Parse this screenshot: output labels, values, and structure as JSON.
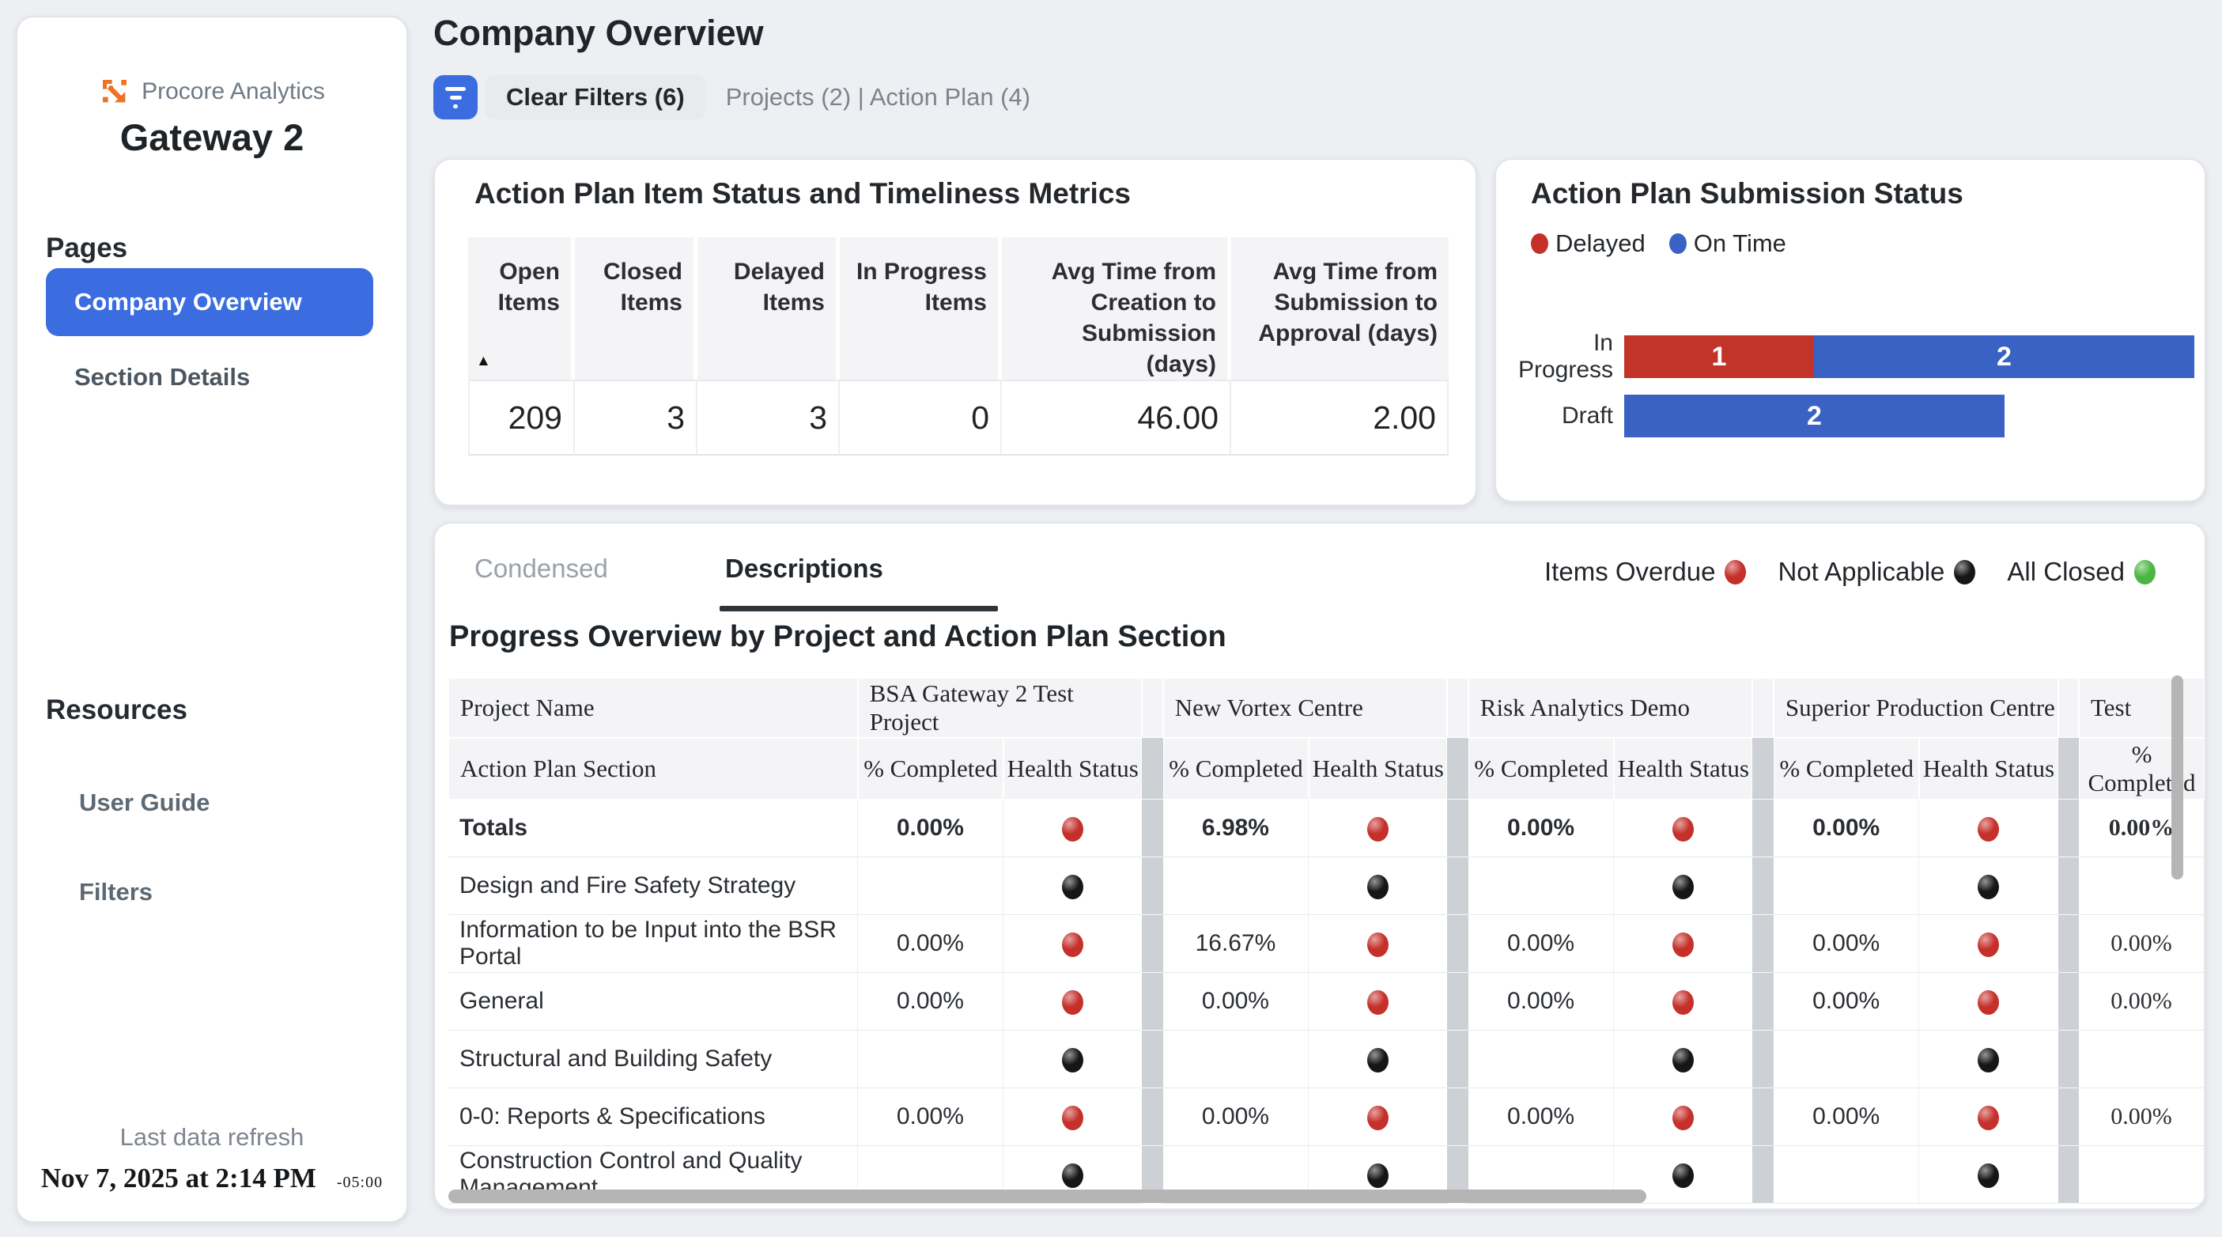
{
  "colors": {
    "page_bg": "#edeff3",
    "accent_blue": "#3b6de0",
    "bar_blue": "#3a62c4",
    "bar_red": "#c23428",
    "dot_red": "#c5302a",
    "dot_black": "#161616",
    "dot_green": "#4db643",
    "header_gray": "#f4f4f6",
    "separator_gray": "#cdd0d4",
    "scrollbar_gray": "#b5b5b5"
  },
  "sidebar": {
    "logo_text": "Procore Analytics",
    "title": "Gateway 2",
    "pages_heading": "Pages",
    "pages": [
      {
        "label": "Company Overview",
        "active": true
      },
      {
        "label": "Section Details",
        "active": false
      }
    ],
    "resources_heading": "Resources",
    "resources": [
      {
        "label": "User Guide"
      },
      {
        "label": "Filters"
      }
    ],
    "last_refresh_label": "Last data refresh",
    "last_refresh_value": "Nov 7, 2025 at 2:14 PM",
    "last_refresh_tz": "-05:00"
  },
  "header": {
    "title": "Company Overview",
    "clear_filters_label": "Clear Filters (6)",
    "filter_summary": "Projects (2) | Action Plan (4)"
  },
  "metrics_card": {
    "title": "Action Plan Item Status and Timeliness Metrics",
    "sort_icon": "▲",
    "columns": [
      "Open Items",
      "Closed Items",
      "Delayed Items",
      "In Progress Items",
      "Avg Time from Creation to Submission (days)",
      "Avg Time from Submission to Approval (days)"
    ],
    "values": [
      "209",
      "3",
      "3",
      "0",
      "46.00",
      "2.00"
    ]
  },
  "submission_card": {
    "title": "Action Plan Submission Status",
    "legend": [
      {
        "label": "Delayed",
        "key": "delayed",
        "color": "#c5302a"
      },
      {
        "label": "On Time",
        "key": "ontime",
        "color": "#3a62c4"
      }
    ],
    "axis_max": 3,
    "rows": [
      {
        "label": "In Progress",
        "segments": [
          {
            "key": "delayed",
            "value": 1
          },
          {
            "key": "ontime",
            "value": 2
          }
        ]
      },
      {
        "label": "Draft",
        "segments": [
          {
            "key": "ontime",
            "value": 2
          }
        ]
      }
    ]
  },
  "progress_card": {
    "tabs": [
      {
        "label": "Condensed",
        "active": false
      },
      {
        "label": "Descriptions",
        "active": true
      }
    ],
    "status_legend": [
      {
        "label": "Items Overdue",
        "color_key": "red"
      },
      {
        "label": "Not Applicable",
        "color_key": "black"
      },
      {
        "label": "All Closed",
        "color_key": "green"
      }
    ],
    "table_title": "Progress Overview by Project and Action Plan Section",
    "row_header_top": "Project Name",
    "row_header_bottom": "Action Plan Section",
    "subcolumns": [
      "% Completed",
      "Health Status"
    ],
    "projects": [
      "BSA Gateway 2 Test Project",
      "New Vortex Centre",
      "Risk Analytics Demo",
      "Superior Production Centre",
      "Test"
    ],
    "rows": [
      {
        "section": "Totals",
        "bold": true,
        "cells": [
          [
            "0.00%",
            "red"
          ],
          [
            "6.98%",
            "red"
          ],
          [
            "0.00%",
            "red"
          ],
          [
            "0.00%",
            "red"
          ],
          [
            "0.00%",
            null
          ]
        ]
      },
      {
        "section": "Design and Fire Safety Strategy",
        "bold": false,
        "cells": [
          [
            "",
            "black"
          ],
          [
            "",
            "black"
          ],
          [
            "",
            "black"
          ],
          [
            "",
            "black"
          ],
          [
            "",
            null
          ]
        ]
      },
      {
        "section": "Information to be Input into the BSR Portal",
        "bold": false,
        "cells": [
          [
            "0.00%",
            "red"
          ],
          [
            "16.67%",
            "red"
          ],
          [
            "0.00%",
            "red"
          ],
          [
            "0.00%",
            "red"
          ],
          [
            "0.00%",
            null
          ]
        ]
      },
      {
        "section": "General",
        "bold": false,
        "cells": [
          [
            "0.00%",
            "red"
          ],
          [
            "0.00%",
            "red"
          ],
          [
            "0.00%",
            "red"
          ],
          [
            "0.00%",
            "red"
          ],
          [
            "0.00%",
            null
          ]
        ]
      },
      {
        "section": "Structural and Building Safety",
        "bold": false,
        "cells": [
          [
            "",
            "black"
          ],
          [
            "",
            "black"
          ],
          [
            "",
            "black"
          ],
          [
            "",
            "black"
          ],
          [
            "",
            null
          ]
        ]
      },
      {
        "section": "0-0: Reports & Specifications",
        "bold": false,
        "cells": [
          [
            "0.00%",
            "red"
          ],
          [
            "0.00%",
            "red"
          ],
          [
            "0.00%",
            "red"
          ],
          [
            "0.00%",
            "red"
          ],
          [
            "0.00%",
            null
          ]
        ]
      },
      {
        "section": "Construction Control and Quality Management",
        "bold": false,
        "cells": [
          [
            "",
            "black"
          ],
          [
            "",
            "black"
          ],
          [
            "",
            "black"
          ],
          [
            "",
            "black"
          ],
          [
            "",
            null
          ]
        ]
      }
    ]
  }
}
